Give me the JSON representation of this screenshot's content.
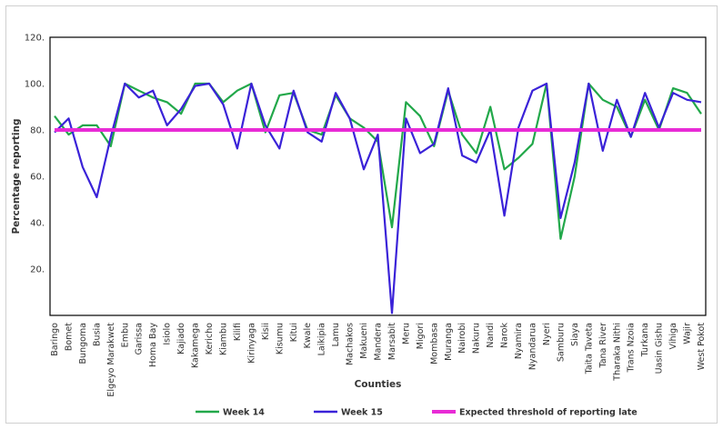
{
  "chart_data": {
    "type": "line",
    "title": "",
    "xlabel": "Counties",
    "ylabel": "Percentage reporting",
    "ylim": [
      0,
      120
    ],
    "y_ticks": [
      "20.",
      "40.",
      "60.",
      "80.",
      "100.",
      "120."
    ],
    "grid": false,
    "legend_position": "bottom",
    "categories": [
      "Baringo",
      "Bomet",
      "Bungoma",
      "Busia",
      "Elgeyo Marakwet",
      "Embu",
      "Garissa",
      "Homa Bay",
      "Isiolo",
      "Kajiado",
      "Kakamega",
      "Kericho",
      "Kiambu",
      "Kilifi",
      "Kirinyaga",
      "Kisii",
      "Kisumu",
      "Kitui",
      "Kwale",
      "Laikipia",
      "Lamu",
      "Machakos",
      "Makueni",
      "Mandera",
      "Marsabit",
      "Meru",
      "Migori",
      "Mombasa",
      "Muranga",
      "Nairobi",
      "Nakuru",
      "Nandi",
      "Narok",
      "Nyamira",
      "Nyandarua",
      "Nyeri",
      "Samburu",
      "Siaya",
      "Taita Taveta",
      "Tana River",
      "Tharaka Nithi",
      "Trans Nzoia",
      "Turkana",
      "Uasin Gishu",
      "Vihiga",
      "Wajir",
      "West Pokot"
    ],
    "series": [
      {
        "name": "Week 14",
        "color": "#22a84a",
        "values": [
          86,
          78,
          82,
          82,
          73,
          100,
          97,
          94,
          92,
          87,
          100,
          100,
          92,
          97,
          100,
          79,
          95,
          96,
          80,
          78,
          95,
          85,
          81,
          75,
          38,
          92,
          86,
          73,
          97,
          78,
          70,
          90,
          63,
          68,
          74,
          100,
          33,
          60,
          100,
          93,
          90,
          77,
          93,
          80,
          98,
          96,
          87
        ]
      },
      {
        "name": "Week 15",
        "color": "#3a22d8",
        "values": [
          79,
          85,
          64,
          51,
          77,
          100,
          94,
          97,
          82,
          89,
          99,
          100,
          91,
          72,
          100,
          82,
          72,
          97,
          79,
          75,
          96,
          85,
          63,
          78,
          1,
          85,
          70,
          74,
          98,
          69,
          66,
          80,
          43,
          81,
          97,
          100,
          42,
          66,
          100,
          71,
          93,
          77,
          96,
          81,
          96,
          93,
          92
        ]
      },
      {
        "name": "Expected threshold of reporting late",
        "color": "#e82bd6",
        "values": [
          80,
          80,
          80,
          80,
          80,
          80,
          80,
          80,
          80,
          80,
          80,
          80,
          80,
          80,
          80,
          80,
          80,
          80,
          80,
          80,
          80,
          80,
          80,
          80,
          80,
          80,
          80,
          80,
          80,
          80,
          80,
          80,
          80,
          80,
          80,
          80,
          80,
          80,
          80,
          80,
          80,
          80,
          80,
          80,
          80,
          80,
          80
        ]
      }
    ]
  }
}
